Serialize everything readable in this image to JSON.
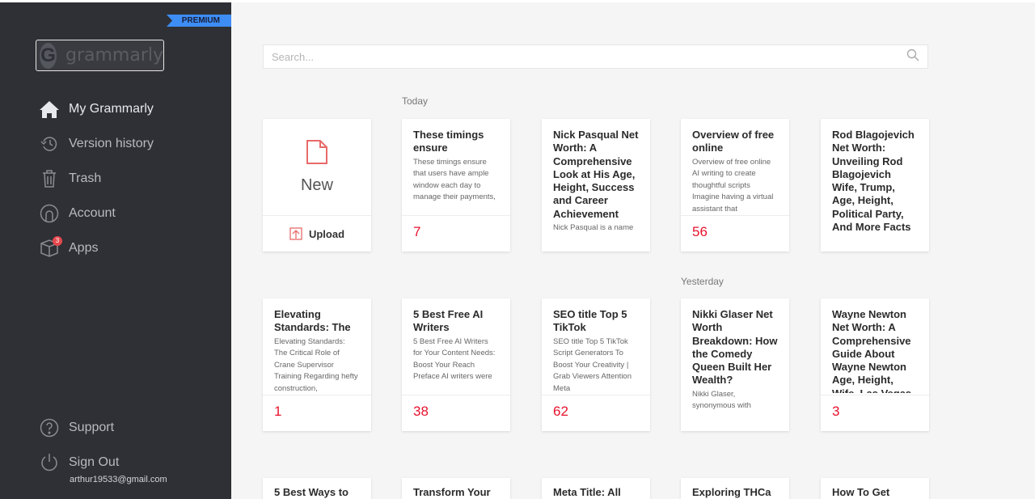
{
  "sidebar": {
    "premium_label": "PREMIUM",
    "logo_text": "grammarly",
    "items": [
      {
        "label": "My Grammarly",
        "icon": "home-icon",
        "active": true
      },
      {
        "label": "Version history",
        "icon": "history-icon"
      },
      {
        "label": "Trash",
        "icon": "trash-icon"
      },
      {
        "label": "Account",
        "icon": "account-icon"
      },
      {
        "label": "Apps",
        "icon": "box-icon",
        "badge": "3"
      }
    ],
    "support_label": "Support",
    "signout_label": "Sign Out",
    "email": "arthur19533@gmail.com"
  },
  "search": {
    "placeholder": "Search..."
  },
  "groups": {
    "today": "Today",
    "yesterday": "Yesterday"
  },
  "new_card": {
    "new_label": "New",
    "upload_label": "Upload"
  },
  "accent_color": "#e8112d",
  "documents": [
    {
      "title": "These timings ensure",
      "snippet": "These timings ensure that users have ample window each day to manage their payments,",
      "count": "7"
    },
    {
      "title": "Nick Pasqual Net Worth: A Comprehensive Look at His Age, Height, Success and Career Achievement",
      "snippet": " Nick Pasqual is a name",
      "count": null
    },
    {
      "title": "Overview of free online",
      "snippet": "Overview of free online AI writing to create thoughtful scripts Imagine having a virtual assistant that",
      "count": "56"
    },
    {
      "title": "Rod Blagojevich Net Worth: Unveiling Rod Blagojevich Wife, Trump, Age, Height, Political Party, And More Facts",
      "snippet": "",
      "count": null
    },
    {
      "title": "Elevating Standards: The",
      "snippet": "Elevating Standards: The Critical Role of Crane Supervisor Training Regarding hefty construction,",
      "count": "1"
    },
    {
      "title": "5 Best Free AI Writers",
      "snippet": "5 Best Free AI Writers for Your Content Needs: Boost Your Reach Preface AI writers were",
      "count": "38"
    },
    {
      "title": "SEO title Top 5 TikTok",
      "snippet": "SEO title Top 5 TikTok Script Generators To Boost Your Creativity | Grab Viewers Attention Meta",
      "count": "62"
    },
    {
      "title": "Nikki Glaser Net Worth Breakdown: How the Comedy Queen Built Her Wealth?",
      "snippet": "Nikki Glaser, synonymous with",
      "count": null
    },
    {
      "title": "Wayne Newton Net Worth: A Comprehensive Guide About Wayne Newton Age, Height, Wife, Las Vegas",
      "snippet": "",
      "count": "3"
    },
    {
      "title": "5 Best Ways to",
      "snippet": "",
      "count": null
    },
    {
      "title": "Transform Your",
      "snippet": "",
      "count": null
    },
    {
      "title": "Meta Title: All",
      "snippet": "",
      "count": null
    },
    {
      "title": "Exploring THCa",
      "snippet": "",
      "count": null
    },
    {
      "title": "How To Get",
      "snippet": "",
      "count": null
    }
  ]
}
